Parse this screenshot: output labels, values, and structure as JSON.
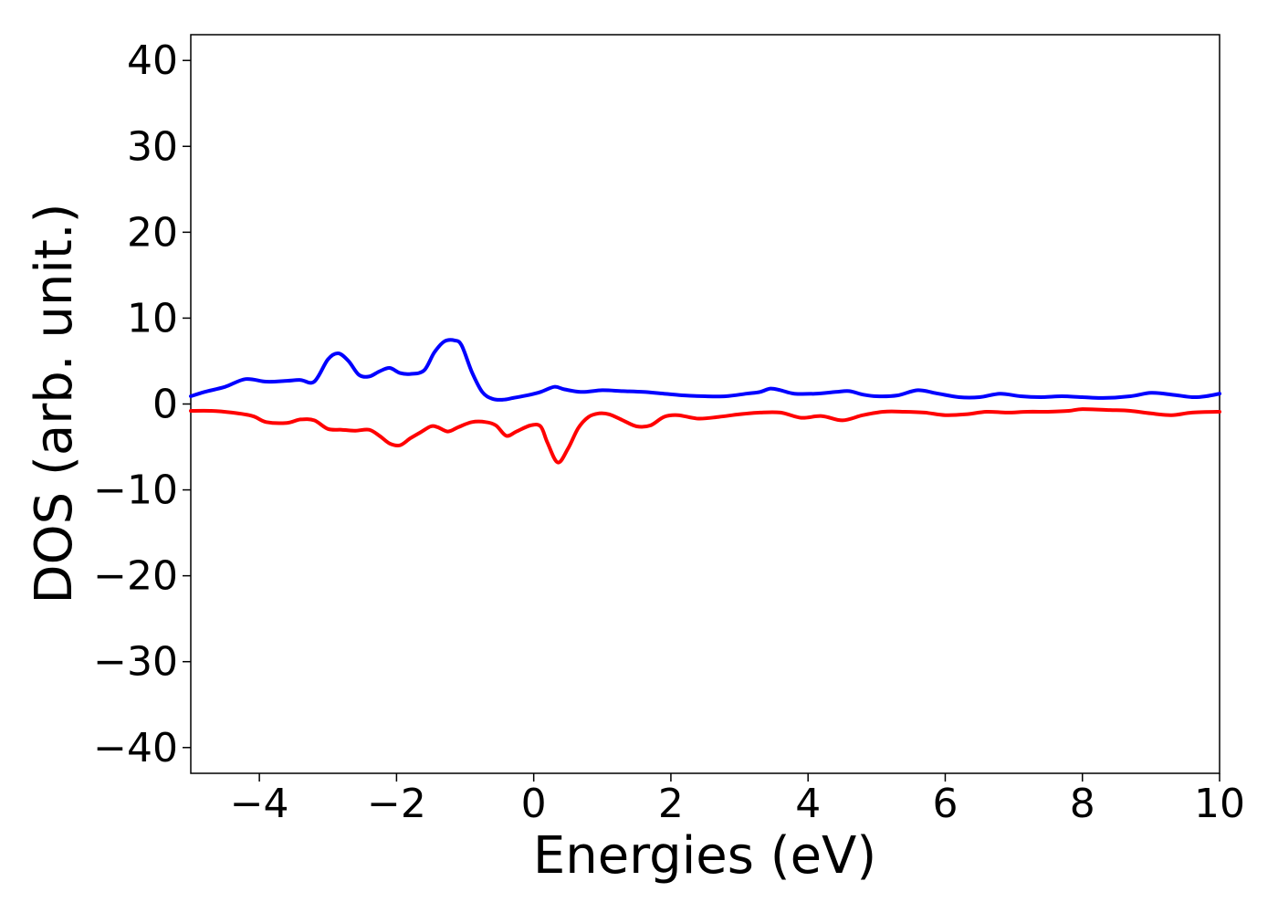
{
  "chart_data": {
    "type": "line",
    "title": "",
    "xlabel": "Energies (eV)",
    "ylabel": "DOS (arb. unit.)",
    "xlim": [
      -5,
      10
    ],
    "ylim": [
      -43,
      43
    ],
    "xticks": [
      -4,
      -2,
      0,
      2,
      4,
      6,
      8,
      10
    ],
    "xtick_labels": [
      "−4",
      "−2",
      "0",
      "2",
      "4",
      "6",
      "8",
      "10"
    ],
    "yticks": [
      40,
      30,
      20,
      10,
      0,
      -10,
      -20,
      -30,
      -40
    ],
    "ytick_labels": [
      "40",
      "30",
      "20",
      "10",
      "0",
      "−10",
      "−20",
      "−30",
      "−40"
    ],
    "grid": false,
    "series": [
      {
        "color": "#0000ff",
        "x": [
          -5.0,
          -4.8,
          -4.5,
          -4.2,
          -3.9,
          -3.6,
          -3.4,
          -3.2,
          -3.0,
          -2.85,
          -2.7,
          -2.55,
          -2.4,
          -2.25,
          -2.1,
          -1.95,
          -1.8,
          -1.6,
          -1.45,
          -1.3,
          -1.15,
          -1.05,
          -0.9,
          -0.75,
          -0.6,
          -0.45,
          -0.3,
          -0.1,
          0.1,
          0.3,
          0.45,
          0.7,
          1.0,
          1.3,
          1.6,
          1.9,
          2.2,
          2.5,
          2.8,
          3.1,
          3.3,
          3.45,
          3.6,
          3.8,
          4.1,
          4.4,
          4.6,
          4.8,
          5.0,
          5.3,
          5.6,
          5.9,
          6.2,
          6.5,
          6.8,
          7.1,
          7.4,
          7.7,
          8.0,
          8.3,
          8.7,
          9.0,
          9.3,
          9.6,
          9.8,
          10.0
        ],
        "y": [
          0.9,
          1.4,
          2.0,
          2.9,
          2.6,
          2.7,
          2.8,
          2.6,
          5.2,
          5.9,
          5.0,
          3.4,
          3.2,
          3.8,
          4.2,
          3.6,
          3.5,
          3.9,
          6.0,
          7.3,
          7.4,
          6.8,
          3.7,
          1.4,
          0.6,
          0.5,
          0.7,
          1.0,
          1.4,
          2.0,
          1.7,
          1.4,
          1.6,
          1.5,
          1.4,
          1.2,
          1.0,
          0.9,
          0.9,
          1.2,
          1.4,
          1.8,
          1.6,
          1.2,
          1.2,
          1.4,
          1.5,
          1.1,
          0.9,
          1.0,
          1.6,
          1.2,
          0.8,
          0.8,
          1.2,
          0.9,
          0.8,
          0.9,
          0.8,
          0.7,
          0.9,
          1.3,
          1.1,
          0.8,
          0.9,
          1.2
        ]
      },
      {
        "color": "#ff0000",
        "x": [
          -5.0,
          -4.7,
          -4.4,
          -4.1,
          -3.9,
          -3.6,
          -3.4,
          -3.2,
          -3.0,
          -2.8,
          -2.6,
          -2.4,
          -2.25,
          -2.1,
          -1.95,
          -1.8,
          -1.65,
          -1.5,
          -1.4,
          -1.25,
          -1.1,
          -0.9,
          -0.7,
          -0.55,
          -0.4,
          -0.25,
          -0.05,
          0.1,
          0.2,
          0.35,
          0.5,
          0.65,
          0.8,
          0.95,
          1.1,
          1.3,
          1.5,
          1.7,
          1.9,
          2.1,
          2.4,
          2.7,
          3.0,
          3.3,
          3.6,
          3.9,
          4.2,
          4.5,
          4.8,
          5.1,
          5.4,
          5.7,
          6.0,
          6.3,
          6.6,
          6.9,
          7.2,
          7.5,
          7.8,
          8.0,
          8.4,
          8.7,
          9.0,
          9.3,
          9.6,
          10.0
        ],
        "y": [
          -0.8,
          -0.8,
          -1.0,
          -1.4,
          -2.1,
          -2.2,
          -1.8,
          -1.9,
          -2.9,
          -3.0,
          -3.1,
          -3.0,
          -3.7,
          -4.6,
          -4.8,
          -4.0,
          -3.3,
          -2.6,
          -2.7,
          -3.2,
          -2.7,
          -2.1,
          -2.1,
          -2.5,
          -3.7,
          -3.2,
          -2.5,
          -2.6,
          -4.5,
          -6.8,
          -5.2,
          -2.8,
          -1.5,
          -1.1,
          -1.2,
          -1.9,
          -2.6,
          -2.5,
          -1.5,
          -1.3,
          -1.7,
          -1.5,
          -1.2,
          -1.0,
          -1.0,
          -1.6,
          -1.4,
          -1.9,
          -1.3,
          -0.9,
          -0.9,
          -1.0,
          -1.3,
          -1.2,
          -0.9,
          -1.0,
          -0.9,
          -0.9,
          -0.8,
          -0.6,
          -0.7,
          -0.8,
          -1.1,
          -1.3,
          -1.0,
          -0.9
        ]
      }
    ]
  }
}
